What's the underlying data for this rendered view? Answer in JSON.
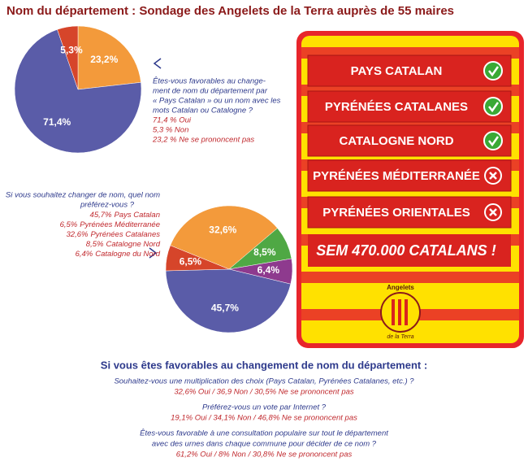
{
  "header": {
    "title": "Nom du département : Sondage des Angelets de la Terra auprès de 55 maires"
  },
  "chart_data": [
    {
      "type": "pie",
      "question": [
        "Êtes-vous favorables au change-",
        "ment de nom du département par",
        "« Pays Catalan » ou un nom avec les",
        "mots Catalan ou Catalogne ?"
      ],
      "answers": [
        "71,4 % Oui",
        "5,3 % Non",
        "23,2 % Ne se prononcent pas"
      ],
      "categories": [
        "Oui",
        "Non",
        "Ne se prononcent pas"
      ],
      "values": [
        71.4,
        5.3,
        23.2
      ],
      "value_labels": [
        "71,4%",
        "5,3%",
        "23,2%"
      ],
      "colors": [
        "#5a5ca8",
        "#d6452a",
        "#f39a3b"
      ]
    },
    {
      "type": "pie",
      "question": [
        "Si vous souhaitez changer de nom, quel nom",
        "préférez-vous ?"
      ],
      "categories": [
        "Pays Catalan",
        "Pyrénées Méditerranée",
        "Pyrénées Catalanes",
        "Catalogne Nord",
        "Catalogne du Nord"
      ],
      "values": [
        45.7,
        6.5,
        32.6,
        8.5,
        6.4
      ],
      "value_labels": [
        "45,7%",
        "6,5%",
        "32,6%",
        "8,5%",
        "6,4%"
      ],
      "colors": [
        "#5a5ca8",
        "#d6452a",
        "#f39a3b",
        "#4fa844",
        "#8e3a8e"
      ]
    }
  ],
  "panel": {
    "banners": [
      {
        "label": "PAYS CATALAN",
        "status": "check"
      },
      {
        "label": "PYRÉNÉES CATALANES",
        "status": "check"
      },
      {
        "label": "CATALOGNE NORD",
        "status": "check"
      },
      {
        "label": "PYRÉNÉES MÉDITERRANÉE",
        "status": "cross"
      },
      {
        "label": "PYRÉNÉES ORIENTALES",
        "status": "cross"
      }
    ],
    "slogan": "SEM 470.000 CATALANS !",
    "logo": [
      "Angelets",
      "de la Terra"
    ]
  },
  "footer": {
    "heading": "Si vous êtes favorables au changement de nom du département :",
    "questions": [
      {
        "lines": [
          "Souhaitez-vous une multiplication des choix (Pays Catalan, Pyrénées Catalanes, etc.) ?"
        ],
        "answer": "32,6% Oui / 36,9 Non / 30,5% Ne se prononcent pas"
      },
      {
        "lines": [
          "Préférez-vous un vote par Internet ?"
        ],
        "answer": "19,1% Oui / 34,1% Non / 46,8%  Ne se prononcent pas"
      },
      {
        "lines": [
          "Êtes-vous favorable à une consultation populaire sur tout le département",
          "avec des urnes dans chaque commune pour décider de ce nom ?"
        ],
        "answer": "61,2% Oui / 8% Non / 30,8% Ne se prononcent pas"
      }
    ]
  }
}
